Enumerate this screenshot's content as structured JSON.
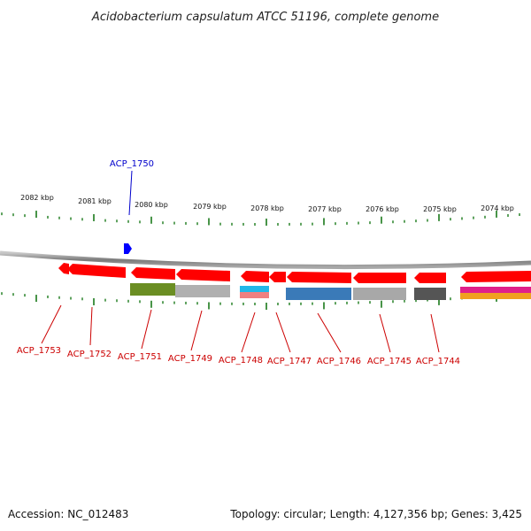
{
  "title": "Acidobacterium capsulatum ATCC 51196, complete genome",
  "footer": {
    "accession": "Accession: NC_012483",
    "summary": "Topology: circular; Length: 4,127,356 bp; Genes: 3,425"
  },
  "scale_labels": [
    "2082 kbp",
    "2081 kbp",
    "2080 kbp",
    "2079 kbp",
    "2078 kbp",
    "2077 kbp",
    "2076 kbp",
    "2075 kbp",
    "2074 kbp"
  ],
  "genes_reverse": [
    {
      "name": "ACP_1753",
      "color": "#ff0000"
    },
    {
      "name": "ACP_1752",
      "color": "#ff0000"
    },
    {
      "name": "ACP_1751",
      "color": "#ff0000",
      "cog_color": "#6b8e23"
    },
    {
      "name": "ACP_1749",
      "color": "#ff0000",
      "cog_color": "#b0b0b0"
    },
    {
      "name": "ACP_1748",
      "color": "#ff0000",
      "cog_color": "#22b8e8",
      "cog_color_2": "#f08080"
    },
    {
      "name": "ACP_1747",
      "color": "#ff0000"
    },
    {
      "name": "ACP_1746",
      "color": "#ff0000",
      "cog_color": "#3a7ab8"
    },
    {
      "name": "ACP_1745",
      "color": "#ff0000",
      "cog_color": "#a8a8a8"
    },
    {
      "name": "ACP_1744",
      "color": "#ff0000",
      "cog_color": "#555555"
    },
    {
      "name": "",
      "color": "#ff0000",
      "cog_color": "#e0208a",
      "cog_color_2": "#f0a020"
    }
  ],
  "genes_forward": [
    {
      "name": "ACP_1750",
      "color": "#0000ff"
    }
  ],
  "colors": {
    "backbone": "#888888",
    "tick": "#1a7a1a",
    "forward_gene": "#0000ff",
    "reverse_gene": "#ff0000",
    "label_red": "#cc0000",
    "label_blue": "#0000cc"
  }
}
